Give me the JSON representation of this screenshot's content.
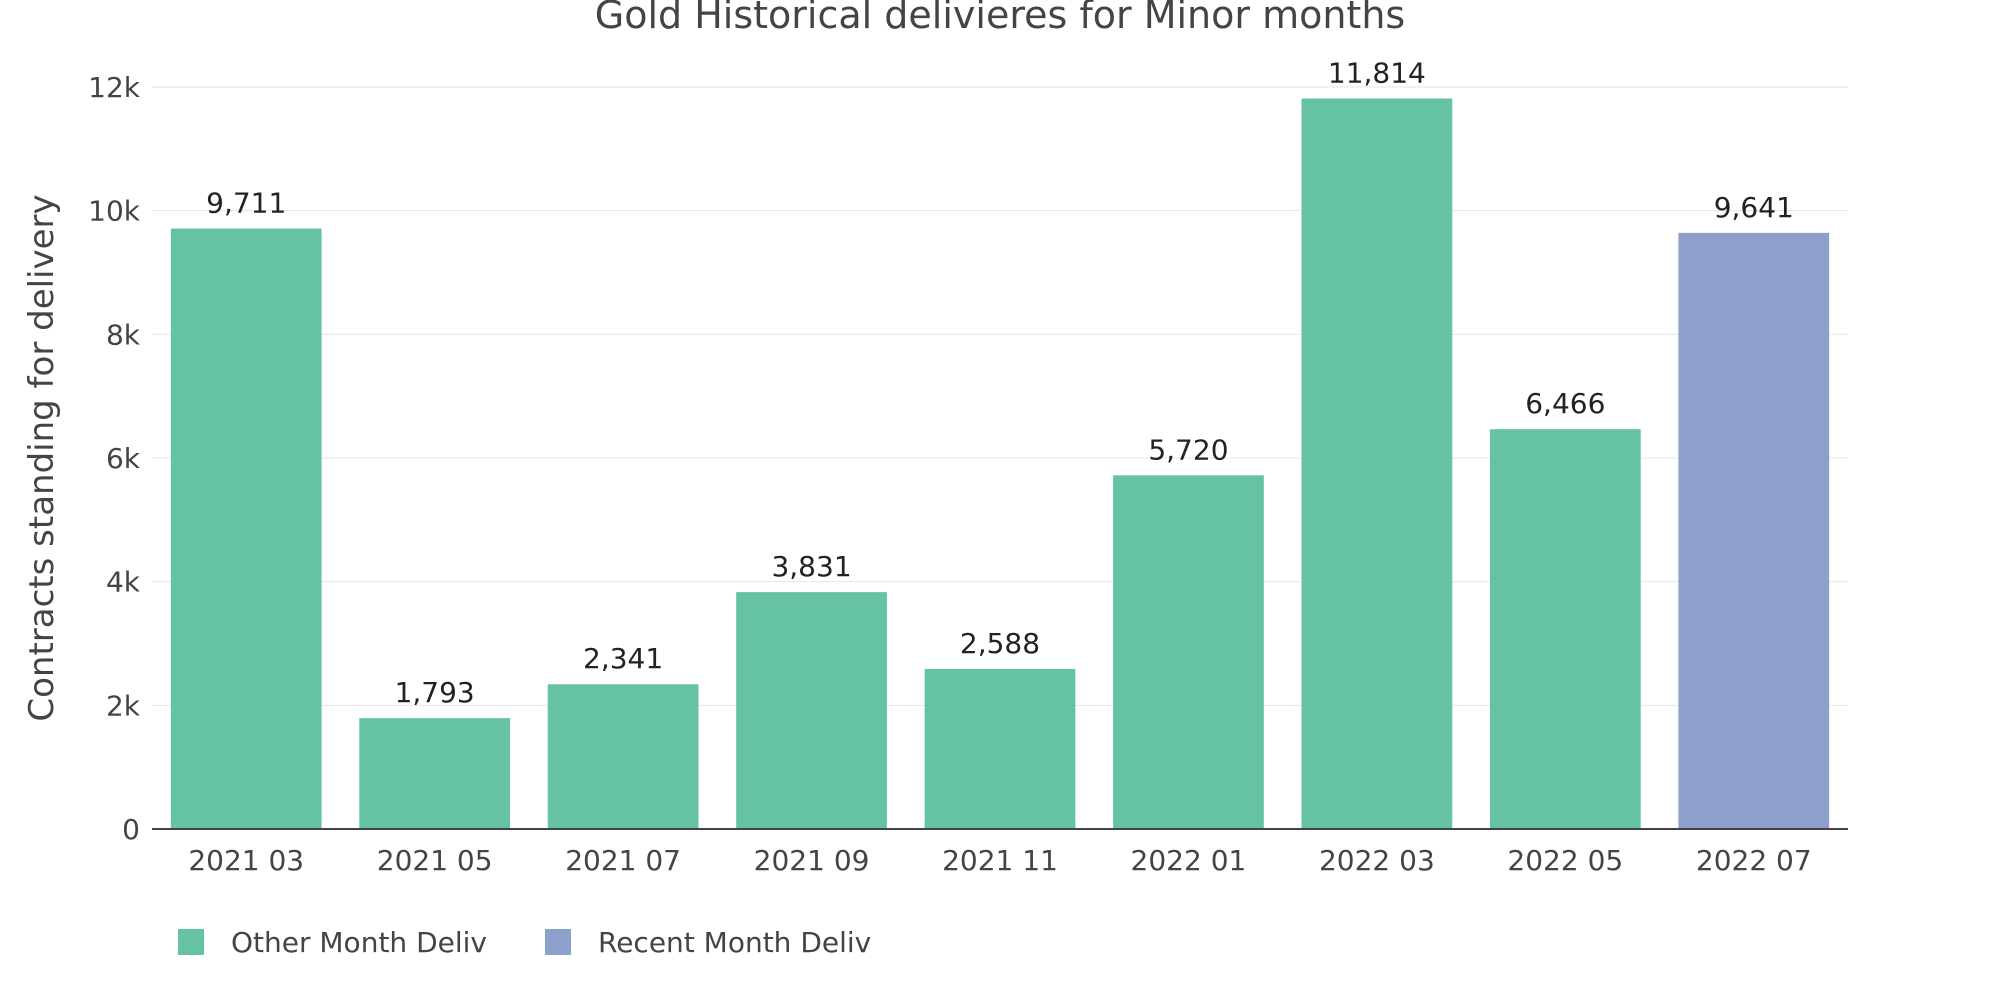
{
  "chart_data": {
    "type": "bar",
    "title": "Gold Historical delivieres for Minor months",
    "xlabel": "",
    "ylabel": "Contracts standing for delivery",
    "categories": [
      "2021 03",
      "2021 05",
      "2021 07",
      "2021 09",
      "2021 11",
      "2022 01",
      "2022 03",
      "2022 05",
      "2022 07"
    ],
    "values": [
      9711,
      1793,
      2341,
      3831,
      2588,
      5720,
      11814,
      6466,
      9641
    ],
    "value_labels": [
      "9,711",
      "1,793",
      "2,341",
      "3,831",
      "2,588",
      "5,720",
      "11,814",
      "6,466",
      "9,641"
    ],
    "series_assignment": [
      "Other Month Deliv",
      "Other Month Deliv",
      "Other Month Deliv",
      "Other Month Deliv",
      "Other Month Deliv",
      "Other Month Deliv",
      "Other Month Deliv",
      "Other Month Deliv",
      "Recent Month Deliv"
    ],
    "legend": [
      {
        "name": "Other Month Deliv",
        "color": "#66c2a5"
      },
      {
        "name": "Recent Month Deliv",
        "color": "#8da0cb"
      }
    ],
    "legend_position": "bottom-left",
    "ylim": [
      0,
      12000
    ],
    "yticks": [
      0,
      2000,
      4000,
      6000,
      8000,
      10000,
      12000
    ],
    "ytick_labels": [
      "0",
      "2k",
      "4k",
      "6k",
      "8k",
      "10k",
      "12k"
    ],
    "grid": true
  }
}
